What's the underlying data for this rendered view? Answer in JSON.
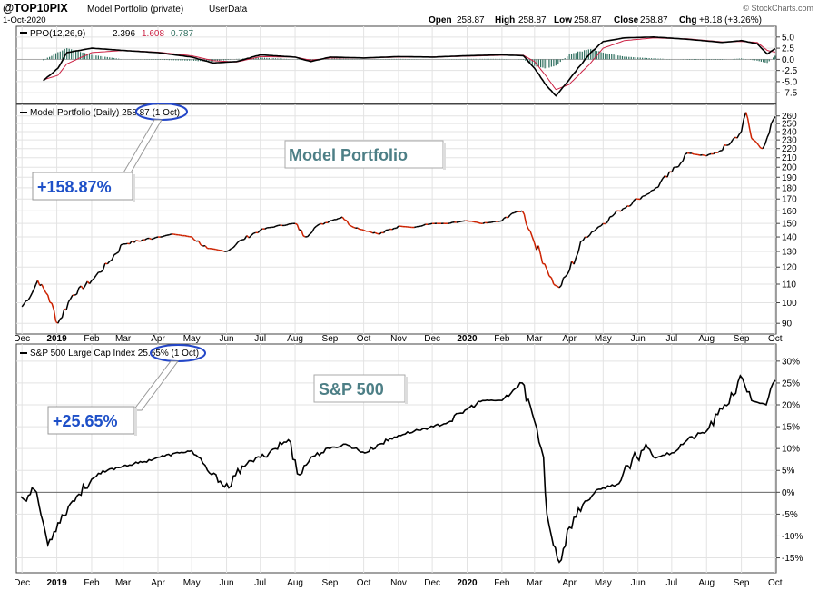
{
  "header": {
    "symbol": "@TOP10PIX",
    "name": "Model Portfolio (private)",
    "userdata": "UserData",
    "date": "1-Oct-2020",
    "watermark": "© StockCharts.com",
    "open_label": "Open",
    "open": "258.87",
    "high_label": "High",
    "high": "258.87",
    "low_label": "Low",
    "low": "258.87",
    "close_label": "Close",
    "close": "258.87",
    "chg_label": "Chg",
    "chg": "+8.18 (+3.26%)"
  },
  "colors": {
    "up": "#000000",
    "down": "#cc2200",
    "signal": "#cc2244",
    "hist": "#2e6e5e",
    "annot": "#1e50c8",
    "label_box": "#4d7f86",
    "ellipse": "#2447c8"
  },
  "months": [
    "Dec",
    "2019",
    "Feb",
    "Mar",
    "Apr",
    "May",
    "Jun",
    "Jul",
    "Aug",
    "Sep",
    "Oct",
    "Nov",
    "Dec",
    "2020",
    "Feb",
    "Mar",
    "Apr",
    "May",
    "Jun",
    "Jul",
    "Aug",
    "Sep",
    "Oct"
  ],
  "chart_data": [
    {
      "type": "line",
      "panel": "ppo",
      "legend_prefix": "PPO(12,26,9)",
      "legend_ppo": "2.396",
      "legend_signal": "1.608",
      "legend_hist": "0.787",
      "ylim": [
        -9.5,
        7
      ],
      "ticks": [
        "5.0",
        "2.5",
        "0.0",
        "-2.5",
        "-5.0",
        "-7.5"
      ],
      "tick_values": [
        5,
        2.5,
        0,
        -2.5,
        -5,
        -7.5
      ],
      "x": [
        "2018-12-20",
        "2019-01-02",
        "2019-01-10",
        "2019-02-01",
        "2019-03-01",
        "2019-04-01",
        "2019-05-01",
        "2019-05-20",
        "2019-06-10",
        "2019-07-01",
        "2019-08-01",
        "2019-08-15",
        "2019-09-01",
        "2019-10-01",
        "2019-11-01",
        "2019-12-01",
        "2020-01-01",
        "2020-02-01",
        "2020-02-20",
        "2020-03-01",
        "2020-03-12",
        "2020-03-20",
        "2020-04-01",
        "2020-04-20",
        "2020-05-01",
        "2020-05-20",
        "2020-06-15",
        "2020-07-15",
        "2020-08-15",
        "2020-09-01",
        "2020-09-15",
        "2020-09-24",
        "2020-10-01"
      ],
      "series": [
        {
          "role": "ppo",
          "values": [
            -4.8,
            -2.0,
            1.5,
            2.5,
            2.0,
            1.5,
            0.5,
            -0.8,
            -0.5,
            1.0,
            0.5,
            -0.5,
            0.5,
            0.3,
            0.6,
            0.5,
            0.8,
            1.0,
            0.8,
            -2.0,
            -6.0,
            -8.2,
            -4.5,
            1.5,
            4.0,
            4.8,
            5.0,
            4.5,
            3.8,
            4.2,
            3.5,
            1.2,
            2.4
          ]
        },
        {
          "role": "signal",
          "values": [
            -4.6,
            -3.6,
            -1.0,
            1.5,
            2.0,
            1.6,
            0.8,
            -0.3,
            -0.6,
            0.6,
            0.5,
            -0.2,
            0.3,
            0.3,
            0.5,
            0.5,
            0.7,
            0.9,
            0.9,
            -0.5,
            -4.0,
            -6.8,
            -5.6,
            -0.8,
            2.5,
            4.2,
            4.8,
            4.6,
            3.9,
            4.0,
            3.8,
            2.0,
            1.6
          ]
        }
      ]
    },
    {
      "type": "line",
      "panel": "portfolio",
      "legend": "Model Portfolio (Daily) 258.87 (1 Oct)",
      "label_box": "Model Portfolio",
      "annotation": "+158.87%",
      "scale": "log",
      "ylim": [
        86,
        272
      ],
      "ticks": [
        "260",
        "250",
        "240",
        "230",
        "220",
        "210",
        "200",
        "190",
        "180",
        "170",
        "160",
        "150",
        "140",
        "130",
        "120",
        "110",
        "100",
        "90"
      ],
      "tick_values": [
        260,
        250,
        240,
        230,
        220,
        210,
        200,
        190,
        180,
        170,
        160,
        150,
        140,
        130,
        120,
        110,
        100,
        90
      ],
      "x": [
        "2018-12-01",
        "2018-12-10",
        "2018-12-15",
        "2018-12-24",
        "2019-01-02",
        "2019-01-15",
        "2019-02-01",
        "2019-02-15",
        "2019-03-01",
        "2019-04-01",
        "2019-04-15",
        "2019-05-01",
        "2019-05-15",
        "2019-06-01",
        "2019-06-15",
        "2019-07-01",
        "2019-07-15",
        "2019-08-01",
        "2019-08-10",
        "2019-08-20",
        "2019-09-01",
        "2019-09-12",
        "2019-09-20",
        "2019-10-01",
        "2019-10-15",
        "2019-11-01",
        "2019-11-15",
        "2019-12-01",
        "2019-12-15",
        "2020-01-01",
        "2020-01-15",
        "2020-02-01",
        "2020-02-10",
        "2020-02-19",
        "2020-02-28",
        "2020-03-10",
        "2020-03-18",
        "2020-03-23",
        "2020-04-01",
        "2020-04-15",
        "2020-05-01",
        "2020-05-15",
        "2020-06-01",
        "2020-06-15",
        "2020-07-01",
        "2020-07-15",
        "2020-08-01",
        "2020-08-15",
        "2020-09-01",
        "2020-09-05",
        "2020-09-10",
        "2020-09-20",
        "2020-09-24",
        "2020-10-01"
      ],
      "values": [
        98,
        105,
        112,
        104,
        90,
        104,
        112,
        122,
        135,
        140,
        142,
        140,
        132,
        130,
        138,
        145,
        148,
        150,
        140,
        148,
        152,
        155,
        148,
        145,
        142,
        148,
        147,
        150,
        150,
        152,
        150,
        152,
        158,
        160,
        140,
        122,
        110,
        108,
        118,
        140,
        150,
        160,
        170,
        178,
        195,
        215,
        212,
        218,
        240,
        265,
        232,
        220,
        233,
        259
      ]
    },
    {
      "type": "line",
      "panel": "sp500",
      "legend": "S&P 500 Large Cap Index 25.65% (1 Oct)",
      "label_box": "S&P 500",
      "annotation": "+25.65%",
      "ylim": [
        -18,
        33.5
      ],
      "ticks": [
        "30%",
        "25%",
        "20%",
        "15%",
        "10%",
        "5%",
        "0%",
        "-5%",
        "-10%",
        "-15%"
      ],
      "tick_values": [
        30,
        25,
        20,
        15,
        10,
        5,
        0,
        -5,
        -10,
        -15
      ],
      "x": [
        "2018-11-30",
        "2018-12-05",
        "2018-12-10",
        "2018-12-14",
        "2018-12-24",
        "2019-01-02",
        "2019-01-15",
        "2019-02-01",
        "2019-02-15",
        "2019-03-01",
        "2019-03-20",
        "2019-04-01",
        "2019-04-20",
        "2019-05-01",
        "2019-05-15",
        "2019-06-03",
        "2019-06-15",
        "2019-07-01",
        "2019-07-26",
        "2019-08-05",
        "2019-08-15",
        "2019-09-01",
        "2019-09-15",
        "2019-10-02",
        "2019-10-15",
        "2019-11-01",
        "2019-11-15",
        "2019-12-02",
        "2019-12-15",
        "2020-01-01",
        "2020-01-15",
        "2020-02-01",
        "2020-02-19",
        "2020-02-28",
        "2020-03-09",
        "2020-03-12",
        "2020-03-16",
        "2020-03-23",
        "2020-04-01",
        "2020-04-15",
        "2020-05-01",
        "2020-05-15",
        "2020-06-08",
        "2020-06-15",
        "2020-07-01",
        "2020-07-15",
        "2020-08-01",
        "2020-08-15",
        "2020-09-02",
        "2020-09-10",
        "2020-09-23",
        "2020-10-01"
      ],
      "values": [
        -1,
        -2,
        1,
        0,
        -12,
        -7,
        -2,
        3,
        5,
        6,
        7,
        8,
        9,
        9.5,
        5,
        1,
        6,
        8,
        12,
        4,
        8,
        10,
        11,
        9,
        11,
        13,
        14,
        15,
        16,
        19,
        21,
        21,
        25,
        18,
        8,
        -5,
        -10,
        -16,
        -8,
        -2,
        1,
        2,
        11,
        8,
        9,
        12,
        14,
        19,
        26,
        21,
        20,
        25.65
      ]
    }
  ]
}
